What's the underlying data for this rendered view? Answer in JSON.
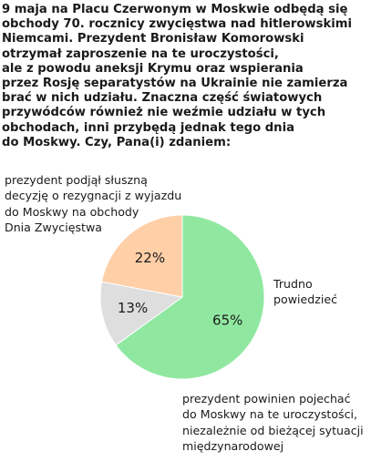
{
  "chart_data": {
    "type": "pie",
    "title_lines": [
      "9 maja na Placu Czerwonym w Moskwie odbędą się",
      "obchody 70. rocznicy zwycięstwa nad hitlerowskimi",
      "Niemcami. Prezydent Bronisław Komorowski",
      "otrzymał zaproszenie na te uroczystości,",
      "ale z powodu aneksji Krymu oraz wspierania",
      "przez Rosję separatystów na Ukrainie nie zamierza",
      "brać w nich udziału. Znaczna część światowych",
      "przywódców również nie weźmie udziału w tych",
      "obchodach, inni przybędą jednak tego dnia",
      "do Moskwy. Czy, Pana(i) zdaniem:"
    ],
    "slices": [
      {
        "label_lines": [
          "prezydent podjął słuszną",
          "decyzję o rezygnacji z wyjazdu",
          "do Moskwy na obchody",
          "Dnia Zwycięstwa"
        ],
        "value": 65,
        "value_label": "65%",
        "color": "#90e8a0"
      },
      {
        "label_lines": [
          "Trudno",
          "powiedzieć"
        ],
        "value": 13,
        "value_label": "13%",
        "color": "#dedede"
      },
      {
        "label_lines": [
          "prezydent powinien pojechać",
          "do Moskwy na te uroczystości,",
          "niezależnie od bieżącej sytuacji",
          "międzynarodowej"
        ],
        "value": 22,
        "value_label": "22%",
        "color": "#ffcfa8"
      }
    ],
    "start_angle_deg": 90,
    "direction": "clockwise"
  }
}
